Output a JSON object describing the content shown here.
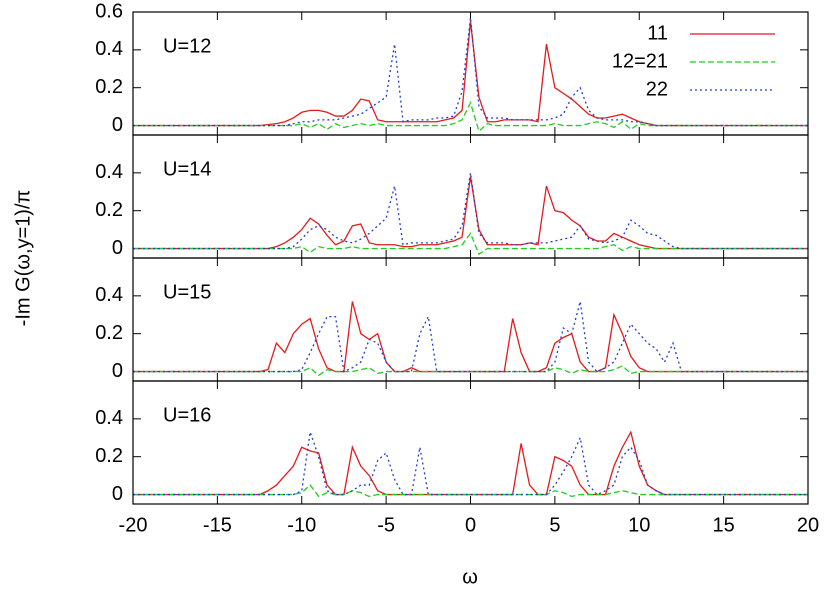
{
  "ylabel": "-Im G(ω,y=1)/π",
  "xlabel": "ω",
  "chart_data": [
    {
      "type": "line",
      "annotation": "U=12",
      "xlim": [
        -20,
        20
      ],
      "ylim": [
        -0.05,
        0.6
      ],
      "yticks": [
        0,
        0.2,
        0.4,
        0.6
      ],
      "legend": "upper right",
      "x": [
        -20,
        -13,
        -12.5,
        -12,
        -11.5,
        -11,
        -10.5,
        -10,
        -9.5,
        -9,
        -8.5,
        -8,
        -7.5,
        -7,
        -6.5,
        -6,
        -5.5,
        -5,
        -4.5,
        -4,
        -3.5,
        -3,
        -2.5,
        -2,
        -1.5,
        -1,
        -0.5,
        0,
        0.5,
        1,
        1.5,
        2,
        2.5,
        3,
        3.5,
        4,
        4.5,
        5,
        5.5,
        6,
        6.5,
        7,
        7.5,
        8,
        8.5,
        9,
        9.5,
        10,
        10.5,
        11,
        11.5,
        12,
        12.5,
        13,
        20
      ],
      "series": [
        {
          "name": "11",
          "color": "#e41a1c",
          "style": "solid",
          "values": [
            0,
            0,
            0,
            0.005,
            0.01,
            0.02,
            0.04,
            0.07,
            0.08,
            0.08,
            0.07,
            0.05,
            0.05,
            0.08,
            0.14,
            0.13,
            0.03,
            0.02,
            0.02,
            0.02,
            0.02,
            0.02,
            0.02,
            0.02,
            0.03,
            0.04,
            0.08,
            0.55,
            0.15,
            0.02,
            0.02,
            0.03,
            0.03,
            0.03,
            0.03,
            0.02,
            0.43,
            0.2,
            0.17,
            0.14,
            0.1,
            0.06,
            0.04,
            0.04,
            0.05,
            0.06,
            0.04,
            0.02,
            0.01,
            0,
            0,
            0,
            0,
            0,
            0
          ]
        },
        {
          "name": "12=21",
          "color": "#22cc22",
          "style": "dashed",
          "values": [
            0,
            0,
            0,
            0,
            0,
            0,
            0,
            0.01,
            -0.01,
            0.01,
            -0.02,
            0.01,
            -0.01,
            0,
            0.01,
            0,
            0.01,
            0,
            0,
            0,
            0,
            0,
            0,
            0,
            0,
            0.01,
            0.03,
            0.12,
            -0.03,
            0.01,
            0,
            0,
            0,
            0,
            0,
            0,
            0,
            0.01,
            0,
            0,
            0,
            0.01,
            0.02,
            0.01,
            -0.01,
            0.02,
            -0.02,
            0.01,
            0,
            0,
            0,
            0,
            0,
            0,
            0
          ]
        },
        {
          "name": "22",
          "color": "#1f3fd0",
          "style": "dotted",
          "values": [
            0,
            0,
            0,
            0,
            0,
            0,
            0.01,
            0.02,
            0.02,
            0.03,
            0.03,
            0.03,
            0.04,
            0.05,
            0.06,
            0.09,
            0.12,
            0.15,
            0.43,
            0.02,
            0.03,
            0.03,
            0.03,
            0.04,
            0.04,
            0.05,
            0.18,
            0.57,
            0.1,
            0.04,
            0.04,
            0.04,
            0.03,
            0.03,
            0.03,
            0.03,
            0.03,
            0.04,
            0.06,
            0.15,
            0.2,
            0.08,
            0.04,
            0.03,
            0.03,
            0.03,
            0.02,
            0.02,
            0.01,
            0,
            0,
            0,
            0,
            0,
            0
          ]
        }
      ]
    },
    {
      "type": "line",
      "annotation": "U=14",
      "xlim": [
        -20,
        20
      ],
      "ylim": [
        -0.05,
        0.6
      ],
      "yticks": [
        0,
        0.2,
        0.4
      ],
      "x": [
        -20,
        -13,
        -12.5,
        -12,
        -11.5,
        -11,
        -10.5,
        -10,
        -9.5,
        -9,
        -8.5,
        -8,
        -7.5,
        -7,
        -6.5,
        -6,
        -5.5,
        -5,
        -4.5,
        -4,
        -3.5,
        -3,
        -2.5,
        -2,
        -1.5,
        -1,
        -0.5,
        0,
        0.5,
        1,
        1.5,
        2,
        2.5,
        3,
        3.5,
        4,
        4.5,
        5,
        5.5,
        6,
        6.5,
        7,
        7.5,
        8,
        8.5,
        9,
        9.5,
        10,
        10.5,
        11,
        11.5,
        12,
        12.5,
        13,
        20
      ],
      "series": [
        {
          "color": "#e41a1c",
          "style": "solid",
          "values": [
            0,
            0,
            0,
            0,
            0.01,
            0.03,
            0.06,
            0.1,
            0.16,
            0.13,
            0.07,
            0.02,
            0.04,
            0.12,
            0.13,
            0.03,
            0.02,
            0.02,
            0.02,
            0.01,
            0.01,
            0.02,
            0.02,
            0.02,
            0.03,
            0.04,
            0.06,
            0.38,
            0.1,
            0.02,
            0.02,
            0.02,
            0.02,
            0.02,
            0.03,
            0.02,
            0.33,
            0.2,
            0.19,
            0.15,
            0.12,
            0.06,
            0.04,
            0.04,
            0.08,
            0.06,
            0.04,
            0.02,
            0.01,
            0,
            0,
            0,
            0,
            0,
            0
          ]
        },
        {
          "color": "#22cc22",
          "style": "dashed",
          "values": [
            0,
            0,
            0,
            0,
            0,
            0,
            0,
            0.01,
            -0.02,
            0.01,
            0,
            0,
            0,
            0.01,
            0,
            0,
            0,
            0,
            0,
            0,
            0,
            0,
            0,
            0,
            0,
            0.01,
            0.02,
            0.08,
            -0.03,
            0,
            0,
            0,
            0,
            0,
            0,
            0,
            0,
            0,
            0,
            0,
            0,
            0,
            0,
            0.01,
            0.02,
            -0.01,
            0.01,
            0,
            0,
            0,
            0,
            0,
            0,
            0,
            0
          ]
        },
        {
          "color": "#1f3fd0",
          "style": "dotted",
          "values": [
            0,
            0,
            0,
            0,
            0,
            0,
            0.01,
            0.05,
            0.1,
            0.12,
            0.1,
            0.06,
            0.04,
            0.03,
            0.05,
            0.08,
            0.12,
            0.16,
            0.33,
            0.02,
            0.03,
            0.03,
            0.03,
            0.03,
            0.04,
            0.05,
            0.12,
            0.4,
            0.08,
            0.03,
            0.03,
            0.03,
            0.02,
            0.02,
            0.03,
            0.03,
            0.03,
            0.04,
            0.05,
            0.06,
            0.12,
            0.05,
            0.04,
            0.03,
            0.04,
            0.06,
            0.15,
            0.12,
            0.08,
            0.07,
            0.04,
            0.01,
            0,
            0,
            0
          ]
        }
      ]
    },
    {
      "type": "line",
      "annotation": "U=15",
      "xlim": [
        -20,
        20
      ],
      "ylim": [
        -0.05,
        0.6
      ],
      "yticks": [
        0,
        0.2,
        0.4
      ],
      "x": [
        -20,
        -13,
        -12.5,
        -12,
        -11.5,
        -11,
        -10.5,
        -10,
        -9.5,
        -9,
        -8.5,
        -8,
        -7.5,
        -7,
        -6.5,
        -6,
        -5.5,
        -5,
        -4.5,
        -4,
        -3.5,
        -3,
        -2.5,
        -2,
        -1.5,
        -1,
        -0.5,
        0,
        0.5,
        1,
        1.5,
        2,
        2.5,
        3,
        3.5,
        4,
        4.5,
        5,
        5.5,
        6,
        6.5,
        7,
        7.5,
        8,
        8.5,
        9,
        9.5,
        10,
        10.5,
        11,
        11.5,
        12,
        12.5,
        13,
        20
      ],
      "series": [
        {
          "color": "#e41a1c",
          "style": "solid",
          "values": [
            0,
            0,
            0,
            0.01,
            0.15,
            0.1,
            0.2,
            0.25,
            0.28,
            0.12,
            0.02,
            0,
            0,
            0.37,
            0.2,
            0.17,
            0.2,
            0.05,
            0,
            0,
            0.02,
            0,
            0,
            0,
            0,
            0,
            0,
            0,
            0,
            0,
            0,
            0,
            0.28,
            0.1,
            0,
            0,
            0.02,
            0.15,
            0.18,
            0.2,
            0.05,
            0,
            0,
            0.02,
            0.3,
            0.2,
            0.08,
            0.02,
            0,
            0,
            0,
            0,
            0,
            0,
            0
          ]
        },
        {
          "color": "#22cc22",
          "style": "dashed",
          "values": [
            0,
            0,
            0,
            0,
            0,
            0,
            0,
            0,
            0.02,
            -0.02,
            0.01,
            0,
            0,
            0,
            0.01,
            0.02,
            -0.01,
            0,
            0,
            0,
            0,
            0,
            0,
            0,
            0,
            0,
            0,
            0,
            0,
            0,
            0,
            0,
            0,
            0,
            0,
            0,
            0,
            0.02,
            0.01,
            -0.01,
            0.01,
            0,
            0,
            0,
            0.01,
            0.03,
            -0.01,
            0,
            0,
            0,
            0,
            0,
            0,
            0,
            0
          ]
        },
        {
          "color": "#1f3fd0",
          "style": "dotted",
          "values": [
            0,
            0,
            0,
            0,
            0,
            0,
            0,
            0.01,
            0.1,
            0.2,
            0.29,
            0.29,
            0,
            0.02,
            0.05,
            0.17,
            0.15,
            0.05,
            0,
            0,
            0,
            0.2,
            0.29,
            0,
            0,
            0,
            0,
            0,
            0,
            0,
            0,
            0,
            0,
            0,
            0,
            0,
            0,
            0.05,
            0.23,
            0.2,
            0.37,
            0.05,
            0,
            0.02,
            0.05,
            0.15,
            0.25,
            0.2,
            0.15,
            0.12,
            0.05,
            0.15,
            0,
            0,
            0
          ]
        }
      ]
    },
    {
      "type": "line",
      "annotation": "U=16",
      "xlim": [
        -20,
        20
      ],
      "ylim": [
        -0.05,
        0.6
      ],
      "yticks": [
        0,
        0.2,
        0.4
      ],
      "xticks": [
        -20,
        -15,
        -10,
        -5,
        0,
        5,
        10,
        15,
        20
      ],
      "x": [
        -20,
        -13,
        -12.5,
        -12,
        -11.5,
        -11,
        -10.5,
        -10,
        -9.5,
        -9,
        -8.5,
        -8,
        -7.5,
        -7,
        -6.5,
        -6,
        -5.5,
        -5,
        -4.5,
        -4,
        -3.5,
        -3,
        -2.5,
        -2,
        -1.5,
        -1,
        -0.5,
        0,
        0.5,
        1,
        1.5,
        2,
        2.5,
        3,
        3.5,
        4,
        4.5,
        5,
        5.5,
        6,
        6.5,
        7,
        7.5,
        8,
        8.5,
        9,
        9.5,
        10,
        10.5,
        11,
        11.5,
        12,
        12.5,
        13,
        20
      ],
      "series": [
        {
          "color": "#e41a1c",
          "style": "solid",
          "values": [
            0,
            0,
            0,
            0.02,
            0.05,
            0.1,
            0.15,
            0.25,
            0.23,
            0.22,
            0.05,
            0,
            0,
            0.25,
            0.15,
            0.1,
            0.02,
            0,
            0,
            0,
            0,
            0,
            0,
            0,
            0,
            0,
            0,
            0,
            0,
            0,
            0,
            0,
            0,
            0.27,
            0.05,
            0,
            0,
            0.2,
            0.18,
            0.15,
            0.05,
            0,
            0,
            0,
            0.15,
            0.25,
            0.33,
            0.15,
            0.05,
            0.02,
            0,
            0,
            0,
            0,
            0
          ]
        },
        {
          "color": "#22cc22",
          "style": "dashed",
          "values": [
            0,
            0,
            0,
            0,
            0,
            0,
            0,
            0.01,
            0.05,
            -0.01,
            0.01,
            0,
            0,
            0.02,
            0.01,
            -0.01,
            0,
            0,
            0,
            0,
            0,
            0,
            0,
            0,
            0,
            0,
            0,
            0,
            0,
            0,
            0,
            0,
            0,
            0,
            0,
            0,
            0,
            0.02,
            0.01,
            -0.01,
            0,
            0,
            0,
            0,
            0.01,
            0.02,
            0.01,
            0,
            0,
            0,
            0,
            0,
            0,
            0,
            0
          ]
        },
        {
          "color": "#1f3fd0",
          "style": "dotted",
          "values": [
            0,
            0,
            0,
            0,
            0,
            0,
            0,
            0.02,
            0.33,
            0.2,
            0.02,
            0,
            0,
            0.02,
            0.05,
            0.05,
            0.18,
            0.22,
            0.08,
            0,
            0,
            0.25,
            0,
            0,
            0,
            0,
            0,
            0,
            0,
            0,
            0,
            0,
            0,
            0,
            0,
            0,
            0,
            0.05,
            0.12,
            0.2,
            0.3,
            0.05,
            0,
            0.02,
            0.05,
            0.2,
            0.25,
            0.18,
            0.05,
            0.02,
            0,
            0,
            0,
            0,
            0
          ]
        }
      ]
    }
  ]
}
